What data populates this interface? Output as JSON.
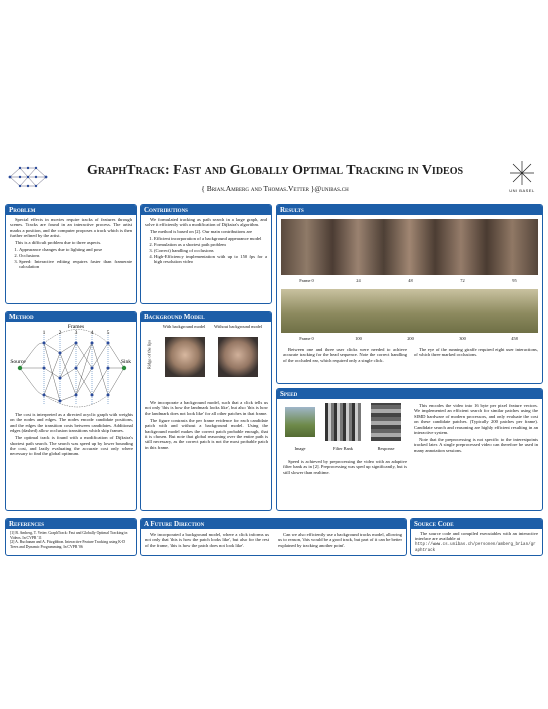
{
  "header": {
    "title": "GraphTrack: Fast and Globally Optimal Tracking in Videos",
    "authors": "{ Brian.Amberg and Thomas.Vetter }@unibas.ch",
    "logo": "UNI BASEL"
  },
  "problem": {
    "heading": "Problem",
    "paragraphs": [
      "Special effects in movies require tracks of features through scenes. Tracks are found in an interactive process. The artist marks a position, and the computer proposes a track which is then further refined by the artist.",
      "This is a difficult problem due to three aspects."
    ],
    "list": [
      "Appearance changes due to lighting and pose",
      "Occlusions",
      "Speed: Interactive editing requires faster than framerate calculation"
    ]
  },
  "contributions": {
    "heading": "Contributions",
    "paragraphs": [
      "We formulated tracking as path search in a large graph, and solve it efficiently with a modification of Dijkstra's algorithm.",
      "The method is based on [2]. Our main contributions are"
    ],
    "list": [
      "Efficient incorporation of a background appearance model",
      "Formulation as a shortest path problem",
      "(Correct) handling of occlusions",
      "High-Efficiency implementation with up to 150 fps for a high resolution video"
    ]
  },
  "results": {
    "heading": "Results",
    "frames_top": [
      "Frame 0",
      "24",
      "48",
      "72",
      "95"
    ],
    "frames_bottom": [
      "Frame 0",
      "100",
      "200",
      "300",
      "458"
    ],
    "captions": [
      "Between one and three user clicks were needed to achieve accurate tracking for the head sequence. Note the correct handling of the occluded ear, which required only a single click.",
      "The eye of the running giraffe required eight user interactions, of which three marked occlusions."
    ]
  },
  "method": {
    "heading": "Method",
    "diagram": {
      "frames": "Frames",
      "numbers": [
        "1",
        "2",
        "3",
        "4",
        "5"
      ],
      "source": "Source",
      "sink": "Sink"
    },
    "paragraphs": [
      "The cost is interpreted as a directed acyclic graph with weights on the nodes and edges. The nodes encode candidate positions, and the edges the transition costs between candidates. Additional edges (dashed) allow occlusion transitions which skip frames.",
      "The optimal track is found with a modification of Dijkstra's shortest path search. The search was speed up by lower bounding the cost, and lazily evaluating the accurate cost only where necessary to find the global optimum."
    ]
  },
  "background": {
    "heading": "Background Model",
    "labels": [
      "With background model",
      "Without background model"
    ],
    "side_label": "Ridge of the lips",
    "paragraphs": [
      "We incorporate a background model, such that a click tells us not only 'this is how the landmark looks like', but also 'this is how the landmark does not look like' for all other patches in that frame.",
      "The figure contrasts the per frame evidence for each candidate patch with and without a background model. Using the background model makes the correct patch probable enough, that it is chosen. But note that global reasoning over the entire path is still necessary, as the correct patch is not the most probable patch in this frame."
    ]
  },
  "speed": {
    "heading": "Speed",
    "labels": [
      "Image",
      "Filter Bank",
      "Response"
    ],
    "paragraphs": [
      "Speed is achieved by preprocessing the video with an adaptive filter bank as in [2]. Preprocessing was sped up significantly, but is still slower than realtime.",
      "This encodes the video into 16 byte per pixel feature vectors. We implemented an efficient search for similar patches using the SIMD hardware of modern processors, and only evaluate the cost on these candidate patches. (Typically 200 patches per frame). Candidate search and reasoning are highly efficient resulting in an interactive system.",
      "Note that the preprocessing is not specific to the interestpoints tracked later. A single preprocessed video can therefore be used in many annotation sessions."
    ]
  },
  "references": {
    "heading": "References",
    "items": [
      "[1] B. Amberg, T. Vetter. GraphTrack: Fast and Globally Optimal Tracking in Videos. In CVPR '11",
      "[2] A. Buchanan and A. Fitzgibbon. Interactive Feature Tracking using K-D Trees and Dynamic Programming. In CVPR '06"
    ]
  },
  "future": {
    "heading": "A Future Direction",
    "paragraphs": [
      "We incorporated a background model, where a click informs us not only that 'this is how the patch looks like', but also for the rest of the frame, 'this is how the patch does not look like'.",
      "Can we also efficiently use a background tracks model, allowing us to reason, 'this would be a good track, but part of it can be better explained by tracking another point'."
    ]
  },
  "source_code": {
    "heading": "Source Code",
    "text": "The source code and compiled executables with an interactive interface are available at",
    "url": "http://www.cs.unibas.ch/personen/amberg_brian/graphtrack"
  }
}
